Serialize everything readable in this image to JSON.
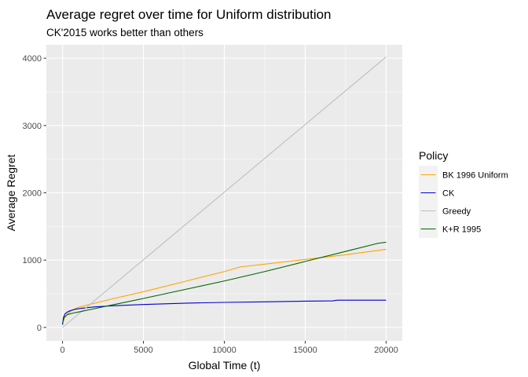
{
  "chart_data": {
    "type": "line",
    "title": "Average regret over time for Uniform distribution",
    "subtitle": "CK'2015 works better than others",
    "xlabel": "Global Time (t)",
    "ylabel": "Average Regret",
    "xlim": [
      -1000,
      21000
    ],
    "ylim": [
      -200,
      4200
    ],
    "x_ticks": [
      0,
      5000,
      10000,
      15000,
      20000
    ],
    "x_tick_labels": [
      "0",
      "5000",
      "10000",
      "15000",
      "20000"
    ],
    "y_ticks": [
      0,
      1000,
      2000,
      3000,
      4000
    ],
    "y_tick_labels": [
      "0",
      "1000",
      "2000",
      "3000",
      "4000"
    ],
    "grid": true,
    "legend": {
      "title": "Policy",
      "position": "right"
    },
    "series": [
      {
        "name": "BK 1996 Uniform",
        "color": "#FFA500",
        "x": [
          0,
          100,
          300,
          600,
          1000,
          2000,
          3000,
          5000,
          7500,
          10000,
          11000,
          12500,
          15000,
          17500,
          20000
        ],
        "y": [
          50,
          130,
          200,
          260,
          300,
          360,
          420,
          530,
          680,
          830,
          900,
          940,
          1010,
          1080,
          1160
        ]
      },
      {
        "name": "CK",
        "color": "#0000CD",
        "x": [
          0,
          50,
          150,
          300,
          500,
          800,
          1200,
          2000,
          3000,
          5000,
          7500,
          10000,
          12500,
          15000,
          16700,
          17000,
          20000
        ],
        "y": [
          40,
          140,
          200,
          230,
          250,
          270,
          285,
          305,
          320,
          340,
          360,
          372,
          380,
          390,
          395,
          405,
          405
        ]
      },
      {
        "name": "Greedy",
        "color": "#BEBEBE",
        "x": [
          0,
          20000
        ],
        "y": [
          0,
          4020
        ]
      },
      {
        "name": "K+R 1995",
        "color": "#006400",
        "x": [
          0,
          100,
          300,
          600,
          1000,
          2000,
          3000,
          5000,
          7500,
          10000,
          12500,
          15000,
          17500,
          19500,
          20000
        ],
        "y": [
          60,
          150,
          190,
          210,
          230,
          280,
          330,
          430,
          560,
          690,
          830,
          980,
          1130,
          1250,
          1265
        ]
      }
    ]
  }
}
